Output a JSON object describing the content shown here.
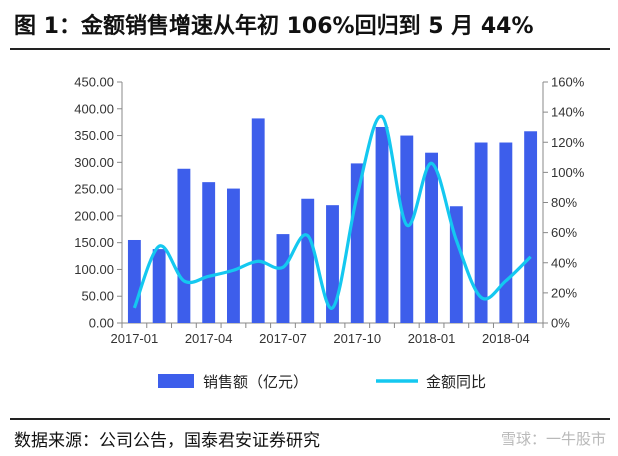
{
  "header": {
    "title": "图 1：金额销售增速从年初 106%回归到 5 月 44%"
  },
  "footer": {
    "source": "数据来源：公司公告，国泰君安证券研究",
    "watermark": "雪球：一牛股市"
  },
  "colors": {
    "bar": "#3d5eeb",
    "line": "#14c8f0",
    "axis": "#888888"
  },
  "chart_data": {
    "type": "bar",
    "x_tick_labels": [
      "2017-01",
      "2017-04",
      "2017-07",
      "2017-10",
      "2018-01",
      "2018-04"
    ],
    "categories": [
      "2017-01",
      "2017-02",
      "2017-03",
      "2017-04",
      "2017-05",
      "2017-06",
      "2017-07",
      "2017-08",
      "2017-09",
      "2017-10",
      "2017-11",
      "2017-12",
      "2018-01",
      "2018-02",
      "2018-03",
      "2018-04",
      "2018-05"
    ],
    "series": [
      {
        "name": "销售额（亿元）",
        "type": "bar",
        "axis": "left",
        "values": [
          155,
          138,
          288,
          263,
          251,
          382,
          166,
          232,
          220,
          298,
          366,
          350,
          318,
          218,
          337,
          337,
          358
        ]
      },
      {
        "name": "金额同比",
        "type": "line",
        "axis": "right",
        "values": [
          10,
          51,
          28,
          31,
          35,
          41,
          37,
          58,
          10,
          85,
          137,
          65,
          106,
          55,
          17,
          28,
          44
        ]
      }
    ],
    "y_left": {
      "min": 0,
      "max": 450,
      "step": 50,
      "ticks": [
        "0.00",
        "50.00",
        "100.00",
        "150.00",
        "200.00",
        "250.00",
        "300.00",
        "350.00",
        "400.00",
        "450.00"
      ]
    },
    "y_right": {
      "min": 0,
      "max": 160,
      "step": 20,
      "ticks": [
        "0%",
        "20%",
        "40%",
        "60%",
        "80%",
        "100%",
        "120%",
        "140%",
        "160%"
      ]
    },
    "legend_position": "bottom",
    "grid": false
  }
}
